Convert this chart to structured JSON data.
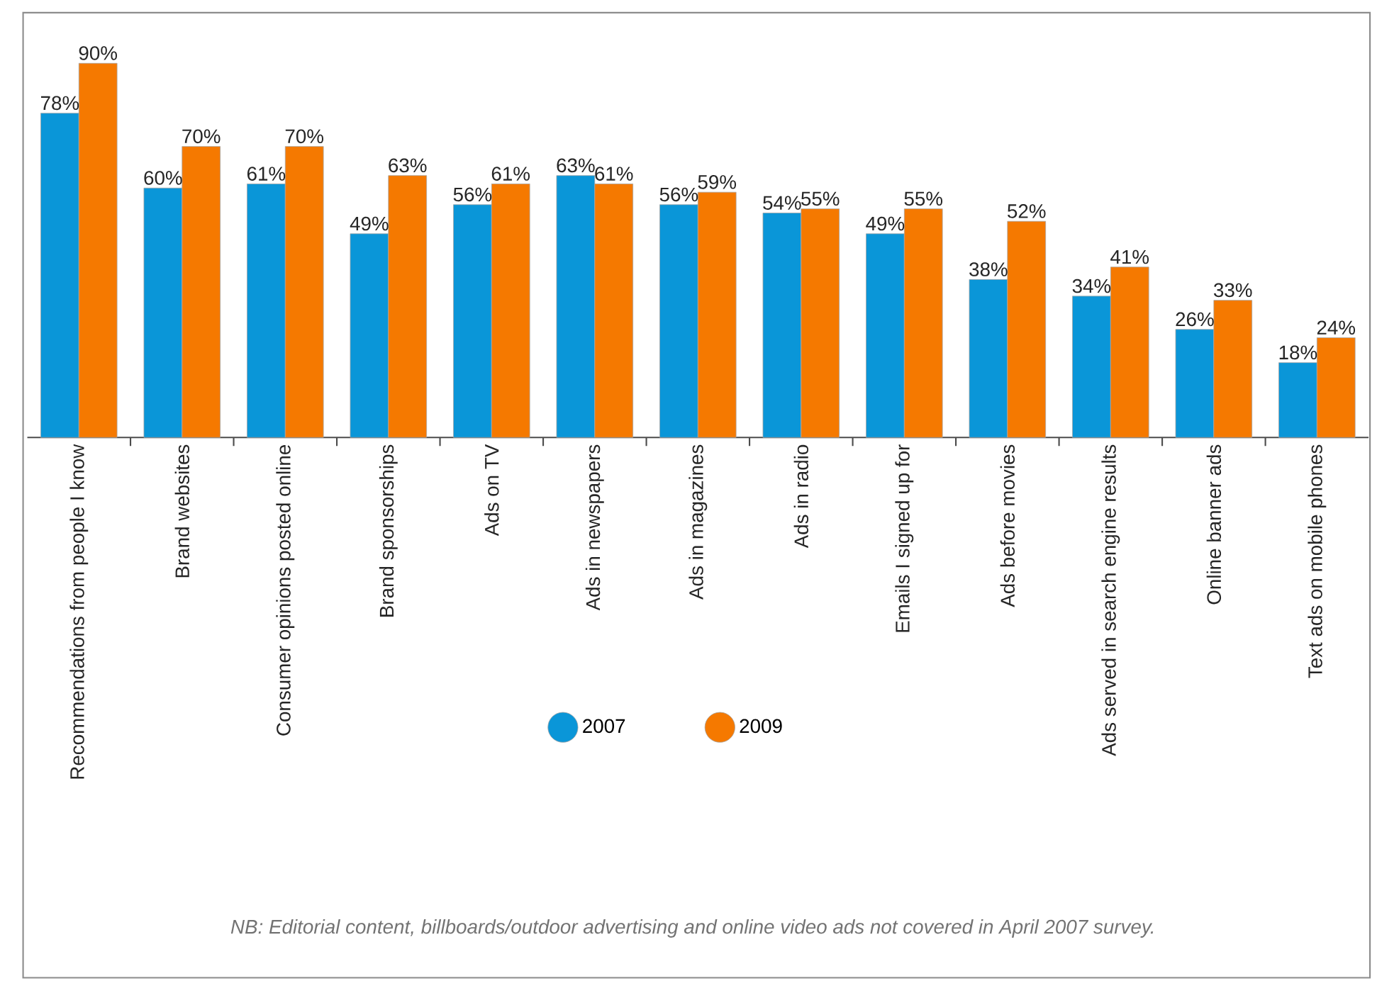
{
  "chart_data": {
    "type": "bar",
    "categories": [
      "Recommendations from people I know",
      "Brand websites",
      "Consumer opinions posted online",
      "Brand sponsorships",
      "Ads on TV",
      "Ads in newspapers",
      "Ads in magazines",
      "Ads in radio",
      "Emails I signed up for",
      "Ads before movies",
      "Ads served in search engine results",
      "Online banner ads",
      "Text ads on mobile phones"
    ],
    "series": [
      {
        "name": "2007",
        "color": "#0a96d8",
        "values": [
          78,
          60,
          61,
          49,
          56,
          63,
          56,
          54,
          49,
          38,
          34,
          26,
          18
        ],
        "value_labels": [
          "78%",
          "60%",
          "61%",
          "49%",
          "56%",
          "63%",
          "56%",
          "54%",
          "49%",
          "38%",
          "34%",
          "26%",
          "18%"
        ]
      },
      {
        "name": "2009",
        "color": "#f57900",
        "values": [
          90,
          70,
          70,
          63,
          61,
          61,
          59,
          55,
          55,
          52,
          41,
          33,
          24
        ],
        "value_labels": [
          "90%",
          "70%",
          "70%",
          "63%",
          "61%",
          "61%",
          "59%",
          "55%",
          "55%",
          "52%",
          "41%",
          "33%",
          "24%"
        ]
      }
    ],
    "legend": "bottom",
    "annotations": [
      "NB: Editorial content, billboards/outdoor advertising and online video ads not covered in April 2007 survey."
    ]
  }
}
